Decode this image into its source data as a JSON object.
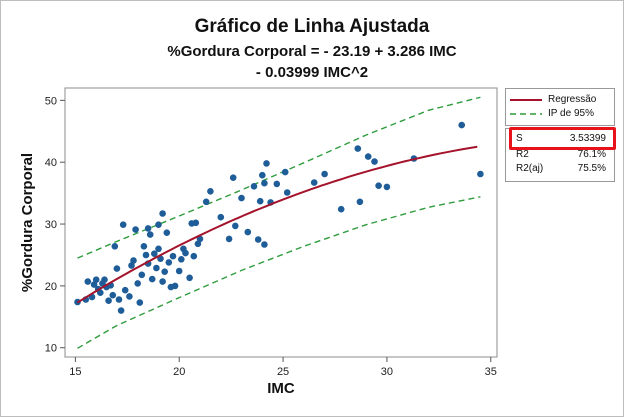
{
  "chart_data": {
    "type": "scatter",
    "title": "Gráfico de Linha Ajustada",
    "subtitle_line1": "%Gordura Corporal = - 23.19 + 3.286 IMC",
    "subtitle_line2": "- 0.03999 IMC^2",
    "xlabel": "IMC",
    "ylabel": "%Gordura Corporal",
    "xlim": [
      14.5,
      35.3
    ],
    "ylim": [
      8.5,
      52
    ],
    "xticks": [
      "15",
      "20",
      "25",
      "30",
      "35"
    ],
    "yticks": [
      "10",
      "20",
      "30",
      "40",
      "50"
    ],
    "grid": false,
    "legend_position": "right",
    "legend": [
      {
        "label": "Regressão",
        "style": "solid",
        "color": "#a4132b"
      },
      {
        "label": "IP de 95%",
        "style": "dashed",
        "color": "#2e9c3c"
      }
    ],
    "fit": {
      "intercept": -23.19,
      "b1": 3.286,
      "b2": -0.03999
    },
    "band": {
      "upper": [
        [
          15.1,
          24.5
        ],
        [
          17,
          27.2
        ],
        [
          20,
          31.3
        ],
        [
          23,
          35.5
        ],
        [
          26,
          39.9
        ],
        [
          29,
          44.4
        ],
        [
          32,
          48.4
        ],
        [
          34.5,
          50.5
        ]
      ],
      "lower": [
        [
          15.1,
          9.9
        ],
        [
          17,
          13.6
        ],
        [
          20,
          18.1
        ],
        [
          23,
          22.5
        ],
        [
          26,
          26.4
        ],
        [
          29,
          29.9
        ],
        [
          32,
          32.7
        ],
        [
          34.5,
          34.4
        ]
      ]
    },
    "points": [
      [
        15.1,
        17.4
      ],
      [
        15.5,
        17.8
      ],
      [
        15.6,
        20.7
      ],
      [
        15.8,
        18.2
      ],
      [
        15.9,
        20.2
      ],
      [
        16.0,
        21.0
      ],
      [
        16.1,
        19.5
      ],
      [
        16.2,
        18.9
      ],
      [
        16.3,
        20.4
      ],
      [
        16.4,
        21.0
      ],
      [
        16.5,
        19.8
      ],
      [
        16.6,
        17.6
      ],
      [
        16.7,
        20.1
      ],
      [
        16.8,
        18.5
      ],
      [
        16.9,
        26.4
      ],
      [
        17.0,
        22.8
      ],
      [
        17.1,
        17.8
      ],
      [
        17.2,
        16.0
      ],
      [
        17.3,
        29.9
      ],
      [
        17.4,
        19.3
      ],
      [
        17.6,
        18.3
      ],
      [
        17.7,
        23.3
      ],
      [
        17.8,
        24.1
      ],
      [
        17.9,
        29.1
      ],
      [
        18.0,
        20.4
      ],
      [
        18.1,
        17.3
      ],
      [
        18.2,
        21.8
      ],
      [
        18.3,
        26.4
      ],
      [
        18.4,
        25.0
      ],
      [
        18.5,
        23.6
      ],
      [
        18.5,
        29.3
      ],
      [
        18.6,
        28.3
      ],
      [
        18.7,
        21.1
      ],
      [
        18.8,
        25.2
      ],
      [
        18.9,
        22.9
      ],
      [
        19.0,
        26.0
      ],
      [
        19.0,
        29.9
      ],
      [
        19.1,
        24.4
      ],
      [
        19.2,
        31.7
      ],
      [
        19.2,
        20.7
      ],
      [
        19.3,
        22.3
      ],
      [
        19.4,
        28.6
      ],
      [
        19.5,
        23.8
      ],
      [
        19.6,
        19.8
      ],
      [
        19.7,
        24.8
      ],
      [
        19.8,
        20.0
      ],
      [
        20.0,
        22.4
      ],
      [
        20.1,
        24.3
      ],
      [
        20.2,
        26.0
      ],
      [
        20.3,
        25.3
      ],
      [
        20.5,
        21.3
      ],
      [
        20.6,
        30.1
      ],
      [
        20.7,
        24.8
      ],
      [
        20.8,
        30.2
      ],
      [
        20.9,
        26.8
      ],
      [
        21.0,
        27.6
      ],
      [
        21.3,
        33.6
      ],
      [
        21.5,
        35.3
      ],
      [
        22.0,
        31.1
      ],
      [
        22.4,
        27.6
      ],
      [
        22.6,
        37.5
      ],
      [
        22.7,
        29.7
      ],
      [
        23.0,
        34.2
      ],
      [
        23.3,
        28.7
      ],
      [
        23.6,
        36.1
      ],
      [
        23.8,
        27.5
      ],
      [
        23.9,
        33.7
      ],
      [
        24.0,
        37.9
      ],
      [
        24.1,
        26.7
      ],
      [
        24.1,
        36.6
      ],
      [
        24.2,
        39.8
      ],
      [
        24.4,
        33.5
      ],
      [
        24.7,
        36.5
      ],
      [
        25.1,
        38.4
      ],
      [
        25.2,
        35.1
      ],
      [
        26.5,
        36.7
      ],
      [
        27.0,
        38.1
      ],
      [
        27.8,
        32.4
      ],
      [
        28.6,
        42.2
      ],
      [
        29.1,
        40.9
      ],
      [
        28.7,
        33.6
      ],
      [
        29.4,
        40.1
      ],
      [
        29.6,
        36.2
      ],
      [
        30.0,
        36.0
      ],
      [
        31.3,
        40.6
      ],
      [
        33.6,
        46.0
      ],
      [
        34.5,
        38.1
      ]
    ],
    "stats": [
      {
        "key": "S",
        "value": "3.53399"
      },
      {
        "key": "R2",
        "value": "76.1%"
      },
      {
        "key": "R2(aj)",
        "value": "75.5%"
      }
    ],
    "colors": {
      "points": "#1f5d99",
      "fit": "#a4132b",
      "band": "#2e9c3c",
      "highlight": "#e8131a"
    }
  }
}
